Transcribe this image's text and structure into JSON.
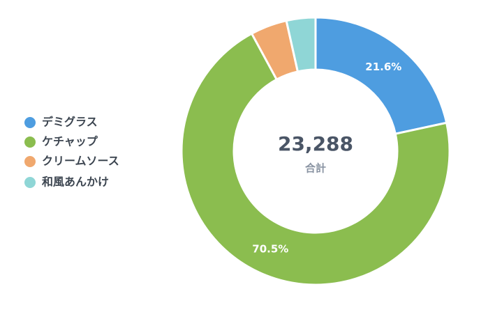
{
  "chart_data": {
    "type": "donut",
    "categories": [
      "デミグラス",
      "ケチャップ",
      "クリームソース",
      "和風あんかけ"
    ],
    "series": [
      {
        "values": [
          21.6,
          70.5,
          4.4,
          3.5
        ],
        "value_labels": [
          "21.6%",
          "70.5%",
          null,
          null
        ],
        "colors": [
          "#4e9de0",
          "#8bbd4f",
          "#f0a86e",
          "#8fd6d6"
        ]
      }
    ],
    "center_text": "23,288",
    "center_caption": "合計",
    "legend": "left"
  }
}
